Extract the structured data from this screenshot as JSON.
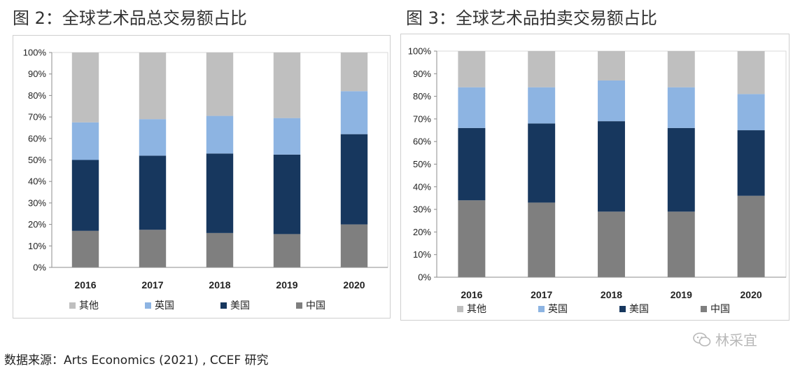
{
  "source_note": "数据来源：Arts Economics (2021) , CCEF 研究",
  "watermark": "林采宜",
  "chart_data": [
    {
      "type": "bar",
      "stacked": true,
      "title": "图 2：全球艺术品总交易额占比",
      "categories": [
        "2016",
        "2017",
        "2018",
        "2019",
        "2020"
      ],
      "ylim": [
        0,
        100
      ],
      "yticks": [
        "0%",
        "10%",
        "20%",
        "30%",
        "40%",
        "50%",
        "60%",
        "70%",
        "80%",
        "90%",
        "100%"
      ],
      "legend_position": "bottom",
      "series": [
        {
          "name": "中国",
          "color": "#7f7f7f",
          "values": [
            17,
            17.5,
            16,
            15.5,
            20
          ]
        },
        {
          "name": "美国",
          "color": "#17375e",
          "values": [
            33,
            34.5,
            37,
            37,
            42
          ]
        },
        {
          "name": "英国",
          "color": "#8db4e2",
          "values": [
            17.5,
            17,
            17.5,
            17,
            20
          ]
        },
        {
          "name": "其他",
          "color": "#bfbfbf",
          "values": [
            32.5,
            31,
            29.5,
            30.5,
            18
          ]
        }
      ],
      "legend_order": [
        "其他",
        "英国",
        "美国",
        "中国"
      ]
    },
    {
      "type": "bar",
      "stacked": true,
      "title": "图 3：全球艺术品拍卖交易额占比",
      "categories": [
        "2016",
        "2017",
        "2018",
        "2019",
        "2020"
      ],
      "ylim": [
        0,
        100
      ],
      "yticks": [
        "0%",
        "10%",
        "20%",
        "30%",
        "40%",
        "50%",
        "60%",
        "70%",
        "80%",
        "90%",
        "100%"
      ],
      "legend_position": "bottom",
      "series": [
        {
          "name": "中国",
          "color": "#7f7f7f",
          "values": [
            34,
            33,
            29,
            29,
            36
          ]
        },
        {
          "name": "美国",
          "color": "#17375e",
          "values": [
            32,
            35,
            40,
            37,
            29
          ]
        },
        {
          "name": "英国",
          "color": "#8db4e2",
          "values": [
            18,
            16,
            18,
            18,
            16
          ]
        },
        {
          "name": "其他",
          "color": "#bfbfbf",
          "values": [
            16,
            16,
            13,
            16,
            19
          ]
        }
      ],
      "legend_order": [
        "其他",
        "英国",
        "美国",
        "中国"
      ]
    }
  ]
}
